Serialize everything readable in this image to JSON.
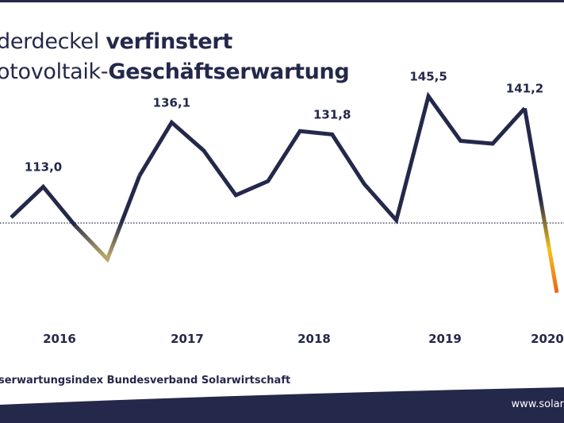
{
  "title": {
    "line1_regular": "derdeckel ",
    "line1_bold": "verfinstert",
    "line2_regular": "otovoltaik-",
    "line2_bold": "Geschäftserwartung"
  },
  "source": "serwartungsindex Bundesverband Solarwirtschaft",
  "footer_url": "www.solar",
  "colors": {
    "line": "#24284a",
    "gradient_mid": "#f3c21b",
    "gradient_end": "#e83e1b",
    "baseline": "#24284a",
    "footer_band": "#24284a"
  },
  "chart_data": {
    "type": "line",
    "title": "",
    "xlabel": "",
    "ylabel": "",
    "x_tick_labels": [
      "2016",
      "2017",
      "2018",
      "2019",
      "2020"
    ],
    "baseline": 100,
    "ylim": [
      70,
      160
    ],
    "series": [
      {
        "values": [
          102,
          113.0,
          99,
          87,
          117,
          136.1,
          126,
          110,
          115,
          133,
          131.8,
          114,
          101,
          145.5,
          129.5,
          128.5,
          141.2,
          75
        ]
      }
    ],
    "annotations": [
      {
        "index": 1,
        "label": "113,0"
      },
      {
        "index": 5,
        "label": "136,1"
      },
      {
        "index": 10,
        "label": "131,8"
      },
      {
        "index": 13,
        "label": "145,5"
      },
      {
        "index": 16,
        "label": "141,2"
      }
    ]
  }
}
